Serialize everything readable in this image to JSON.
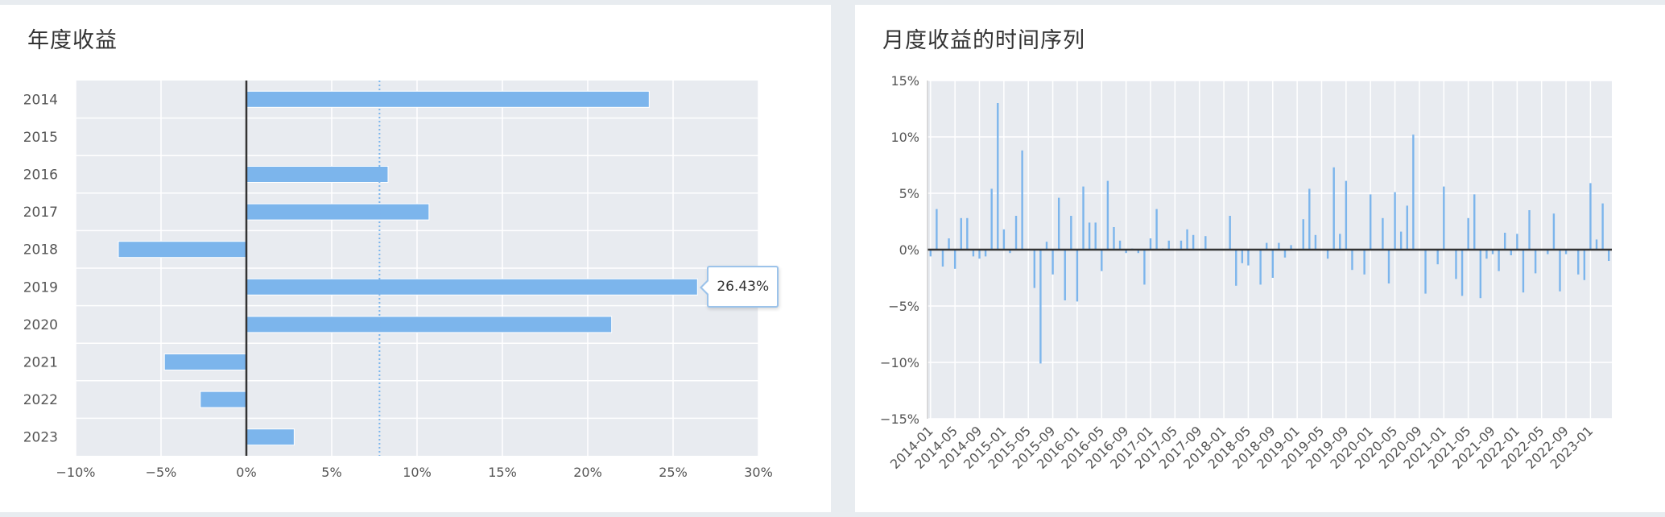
{
  "left_panel": {
    "title": "年度收益",
    "tooltip": {
      "text": "26.43%",
      "category": "2019"
    }
  },
  "right_panel": {
    "title": "月度收益的时间序列"
  },
  "colors": {
    "bar": "#7cb5ec",
    "plot_bg": "#e8ebf0",
    "grid": "#ffffff",
    "axis": "#333333",
    "average_line": "#7cb5ec"
  },
  "chart_data": [
    {
      "type": "bar",
      "orientation": "horizontal",
      "title": "年度收益",
      "categories": [
        "2014",
        "2015",
        "2016",
        "2017",
        "2018",
        "2019",
        "2020",
        "2021",
        "2022",
        "2023"
      ],
      "values": [
        23.6,
        0,
        8.3,
        10.7,
        -7.5,
        26.43,
        21.4,
        -4.8,
        -2.7,
        2.8
      ],
      "xlim": [
        -10,
        30
      ],
      "xticks": [
        -10,
        -5,
        0,
        5,
        10,
        15,
        20,
        25,
        30
      ],
      "xtick_labels": [
        "−10%",
        "−5%",
        "0%",
        "5%",
        "10%",
        "15%",
        "20%",
        "25%",
        "30%"
      ],
      "reference_line": {
        "value": 7.8,
        "style": "dotted"
      },
      "grid": true,
      "legend": "none"
    },
    {
      "type": "bar",
      "title": "月度收益的时间序列",
      "x_start": "2014-01",
      "x_tick_labels": [
        "2014-01",
        "2014-05",
        "2014-09",
        "2015-01",
        "2015-05",
        "2015-09",
        "2016-01",
        "2016-05",
        "2016-09",
        "2017-01",
        "2017-05",
        "2017-09",
        "2018-01",
        "2018-05",
        "2018-09",
        "2019-01",
        "2019-05",
        "2019-09",
        "2020-01",
        "2020-05",
        "2020-09",
        "2021-01",
        "2021-05",
        "2021-09",
        "2022-01",
        "2022-05",
        "2022-09",
        "2023-01"
      ],
      "values": [
        -0.6,
        3.6,
        -1.5,
        1.0,
        -1.7,
        2.8,
        2.8,
        -0.6,
        -0.8,
        -0.6,
        5.4,
        13.0,
        1.8,
        -0.3,
        3.0,
        8.8,
        0,
        -3.4,
        -10.1,
        0.7,
        -2.2,
        4.6,
        -4.5,
        3.0,
        -4.6,
        5.6,
        2.4,
        2.4,
        -1.9,
        6.1,
        2.0,
        0.8,
        -0.3,
        0.1,
        -0.3,
        -3.1,
        1.0,
        3.6,
        0.1,
        0.8,
        0,
        0.8,
        1.8,
        1.3,
        0,
        1.2,
        0,
        0,
        0,
        3.0,
        -3.2,
        -1.2,
        -1.4,
        0,
        -3.1,
        0.6,
        -2.5,
        0.6,
        -0.7,
        0.4,
        0,
        2.7,
        5.4,
        1.3,
        0,
        -0.8,
        7.3,
        1.4,
        6.1,
        -1.8,
        0,
        -2.2,
        4.9,
        0,
        2.8,
        -3.0,
        5.1,
        1.6,
        3.9,
        10.2,
        0,
        -3.9,
        0,
        -1.3,
        5.6,
        0,
        -2.6,
        -4.1,
        2.8,
        4.9,
        -4.3,
        -0.8,
        -0.4,
        -1.9,
        1.5,
        -0.5,
        1.4,
        -3.8,
        3.5,
        -2.1,
        0,
        -0.4,
        3.2,
        -3.7,
        -0.4,
        0,
        -2.2,
        -2.7,
        5.9,
        0.9,
        4.1,
        -1.0
      ],
      "ylim": [
        -15,
        15
      ],
      "yticks": [
        -15,
        -10,
        -5,
        0,
        5,
        10,
        15
      ],
      "ytick_labels": [
        "−15%",
        "−10%",
        "−5%",
        "0%",
        "5%",
        "10%",
        "15%"
      ],
      "grid": true,
      "legend": "none"
    }
  ]
}
